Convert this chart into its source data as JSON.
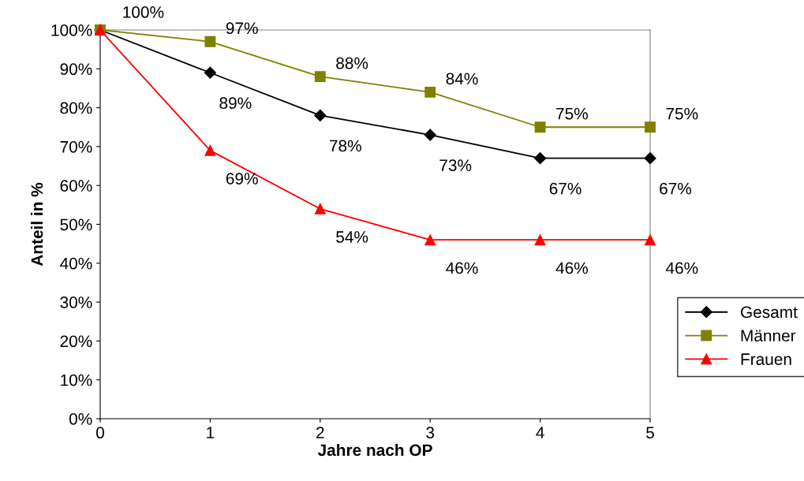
{
  "chart_data": {
    "type": "line",
    "xlabel": "Jahre nach OP",
    "ylabel": "Anteil in %",
    "x": [
      0,
      1,
      2,
      3,
      4,
      5
    ],
    "xlim": [
      0,
      5
    ],
    "xticks": [
      0,
      1,
      2,
      3,
      4,
      5
    ],
    "ylim": [
      0,
      100
    ],
    "yticks": [
      {
        "value": 0,
        "label": "0%"
      },
      {
        "value": 10,
        "label": "10%"
      },
      {
        "value": 20,
        "label": "20%"
      },
      {
        "value": 30,
        "label": "30%"
      },
      {
        "value": 40,
        "label": "40%"
      },
      {
        "value": 50,
        "label": "50%"
      },
      {
        "value": 60,
        "label": "60%"
      },
      {
        "value": 70,
        "label": "70%"
      },
      {
        "value": 80,
        "label": "80%"
      },
      {
        "value": 90,
        "label": "90%"
      },
      {
        "value": 100,
        "label": "100%"
      }
    ],
    "grid": false,
    "legend": "right",
    "line_style": "solid",
    "series": [
      {
        "name": "Gesamt",
        "color": "#000000",
        "marker": "diamond",
        "values": [
          100,
          89,
          78,
          73,
          67,
          67
        ],
        "value_labels": [
          null,
          "89%",
          "78%",
          "73%",
          "67%",
          "67%"
        ]
      },
      {
        "name": "Männer",
        "color": "#808000",
        "marker": "square",
        "values": [
          100,
          97,
          88,
          84,
          75,
          75
        ],
        "value_labels": [
          "100%",
          "97%",
          "88%",
          "84%",
          "75%",
          "75%"
        ]
      },
      {
        "name": "Frauen",
        "color": "#ff0000",
        "marker": "triangle",
        "values": [
          100,
          69,
          54,
          46,
          46,
          46
        ],
        "value_labels": [
          null,
          "69%",
          "54%",
          "46%",
          "46%",
          "46%"
        ]
      }
    ]
  }
}
